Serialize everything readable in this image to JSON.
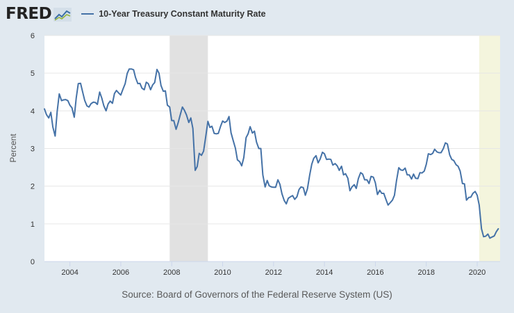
{
  "header": {
    "logo_text": "FRED",
    "legend_label": "10-Year Treasury Constant Maturity Rate"
  },
  "source_text": "Source: Board of Governors of the Federal Reserve System (US)",
  "colors": {
    "line": "#4572a7",
    "recession": "#e1e1e1",
    "partial_period": "#f4f5dd",
    "plot_bg": "#ffffff",
    "page_bg": "#e1e9f0"
  },
  "chart_data": {
    "type": "line",
    "title": "10-Year Treasury Constant Maturity Rate",
    "xlabel": "",
    "ylabel": "Percent",
    "xlim": [
      2003.0,
      2020.9
    ],
    "ylim": [
      0,
      6
    ],
    "x_ticks": [
      "2004",
      "2006",
      "2008",
      "2010",
      "2012",
      "2014",
      "2016",
      "2018",
      "2020"
    ],
    "y_ticks": [
      "0",
      "1",
      "2",
      "3",
      "4",
      "5",
      "6"
    ],
    "grid": "horizontal",
    "shaded_regions": [
      {
        "kind": "recession",
        "start": 2007.92,
        "end": 2009.42
      },
      {
        "kind": "highlight",
        "start": 2020.08,
        "end": 2020.9
      }
    ],
    "series": [
      {
        "name": "10-Year Treasury Constant Maturity Rate",
        "x": [
          2003.0,
          2003.08,
          2003.17,
          2003.25,
          2003.33,
          2003.42,
          2003.5,
          2003.58,
          2003.67,
          2003.75,
          2003.83,
          2003.92,
          2004.0,
          2004.08,
          2004.17,
          2004.25,
          2004.33,
          2004.42,
          2004.5,
          2004.58,
          2004.67,
          2004.75,
          2004.83,
          2004.92,
          2005.0,
          2005.08,
          2005.17,
          2005.25,
          2005.33,
          2005.42,
          2005.5,
          2005.58,
          2005.67,
          2005.75,
          2005.83,
          2005.92,
          2006.0,
          2006.08,
          2006.17,
          2006.25,
          2006.33,
          2006.42,
          2006.5,
          2006.58,
          2006.67,
          2006.75,
          2006.83,
          2006.92,
          2007.0,
          2007.08,
          2007.17,
          2007.25,
          2007.33,
          2007.42,
          2007.5,
          2007.58,
          2007.67,
          2007.75,
          2007.83,
          2007.92,
          2008.0,
          2008.08,
          2008.17,
          2008.25,
          2008.33,
          2008.42,
          2008.5,
          2008.58,
          2008.67,
          2008.75,
          2008.83,
          2008.92,
          2009.0,
          2009.08,
          2009.17,
          2009.25,
          2009.33,
          2009.42,
          2009.5,
          2009.58,
          2009.67,
          2009.75,
          2009.83,
          2009.92,
          2010.0,
          2010.08,
          2010.17,
          2010.25,
          2010.33,
          2010.42,
          2010.5,
          2010.58,
          2010.67,
          2010.75,
          2010.83,
          2010.92,
          2011.0,
          2011.08,
          2011.17,
          2011.25,
          2011.33,
          2011.42,
          2011.5,
          2011.58,
          2011.67,
          2011.75,
          2011.83,
          2011.92,
          2012.0,
          2012.08,
          2012.17,
          2012.25,
          2012.33,
          2012.42,
          2012.5,
          2012.58,
          2012.67,
          2012.75,
          2012.83,
          2012.92,
          2013.0,
          2013.08,
          2013.17,
          2013.25,
          2013.33,
          2013.42,
          2013.5,
          2013.58,
          2013.67,
          2013.75,
          2013.83,
          2013.92,
          2014.0,
          2014.08,
          2014.17,
          2014.25,
          2014.33,
          2014.42,
          2014.5,
          2014.58,
          2014.67,
          2014.75,
          2014.83,
          2014.92,
          2015.0,
          2015.08,
          2015.17,
          2015.25,
          2015.33,
          2015.42,
          2015.5,
          2015.58,
          2015.67,
          2015.75,
          2015.83,
          2015.92,
          2016.0,
          2016.08,
          2016.17,
          2016.25,
          2016.33,
          2016.42,
          2016.5,
          2016.58,
          2016.67,
          2016.75,
          2016.83,
          2016.92,
          2017.0,
          2017.08,
          2017.17,
          2017.25,
          2017.33,
          2017.42,
          2017.5,
          2017.58,
          2017.67,
          2017.75,
          2017.83,
          2017.92,
          2018.0,
          2018.08,
          2018.17,
          2018.25,
          2018.33,
          2018.42,
          2018.5,
          2018.58,
          2018.67,
          2018.75,
          2018.83,
          2018.92,
          2019.0,
          2019.08,
          2019.17,
          2019.25,
          2019.33,
          2019.42,
          2019.5,
          2019.58,
          2019.67,
          2019.75,
          2019.83,
          2019.92,
          2020.0,
          2020.08,
          2020.17,
          2020.25,
          2020.33,
          2020.42,
          2020.5,
          2020.58,
          2020.67,
          2020.75,
          2020.83
        ],
        "values": [
          4.05,
          3.9,
          3.81,
          3.96,
          3.57,
          3.33,
          3.98,
          4.45,
          4.27,
          4.29,
          4.3,
          4.27,
          4.15,
          4.08,
          3.83,
          4.35,
          4.72,
          4.73,
          4.5,
          4.28,
          4.13,
          4.1,
          4.19,
          4.23,
          4.22,
          4.17,
          4.5,
          4.34,
          4.14,
          4.0,
          4.18,
          4.26,
          4.2,
          4.46,
          4.54,
          4.47,
          4.42,
          4.57,
          4.72,
          4.99,
          5.11,
          5.11,
          5.09,
          4.88,
          4.72,
          4.73,
          4.6,
          4.56,
          4.76,
          4.72,
          4.56,
          4.69,
          4.75,
          5.1,
          5.0,
          4.67,
          4.52,
          4.53,
          4.15,
          4.1,
          3.74,
          3.74,
          3.51,
          3.68,
          3.88,
          4.1,
          4.01,
          3.89,
          3.69,
          3.81,
          3.53,
          2.42,
          2.52,
          2.87,
          2.82,
          2.93,
          3.29,
          3.72,
          3.56,
          3.59,
          3.4,
          3.39,
          3.4,
          3.59,
          3.73,
          3.69,
          3.73,
          3.85,
          3.42,
          3.2,
          3.01,
          2.7,
          2.65,
          2.54,
          2.76,
          3.29,
          3.39,
          3.58,
          3.41,
          3.46,
          3.17,
          3.0,
          3.0,
          2.3,
          1.98,
          2.15,
          2.01,
          1.98,
          1.97,
          1.97,
          2.17,
          2.05,
          1.8,
          1.62,
          1.53,
          1.68,
          1.72,
          1.75,
          1.65,
          1.72,
          1.91,
          1.98,
          1.96,
          1.76,
          1.93,
          2.3,
          2.58,
          2.74,
          2.81,
          2.62,
          2.72,
          2.9,
          2.86,
          2.71,
          2.72,
          2.71,
          2.56,
          2.6,
          2.54,
          2.42,
          2.53,
          2.3,
          2.33,
          2.21,
          1.88,
          1.98,
          2.04,
          1.94,
          2.2,
          2.36,
          2.32,
          2.17,
          2.17,
          2.07,
          2.26,
          2.24,
          2.09,
          1.78,
          1.89,
          1.81,
          1.81,
          1.64,
          1.5,
          1.56,
          1.63,
          1.76,
          2.14,
          2.49,
          2.43,
          2.42,
          2.48,
          2.3,
          2.3,
          2.19,
          2.32,
          2.21,
          2.2,
          2.36,
          2.35,
          2.4,
          2.58,
          2.86,
          2.84,
          2.87,
          2.98,
          2.91,
          2.89,
          2.89,
          3.0,
          3.15,
          3.12,
          2.83,
          2.71,
          2.68,
          2.57,
          2.53,
          2.4,
          2.07,
          2.06,
          1.63,
          1.7,
          1.71,
          1.81,
          1.86,
          1.76,
          1.5,
          0.87,
          0.66,
          0.67,
          0.73,
          0.62,
          0.65,
          0.68,
          0.79,
          0.87
        ]
      }
    ]
  }
}
